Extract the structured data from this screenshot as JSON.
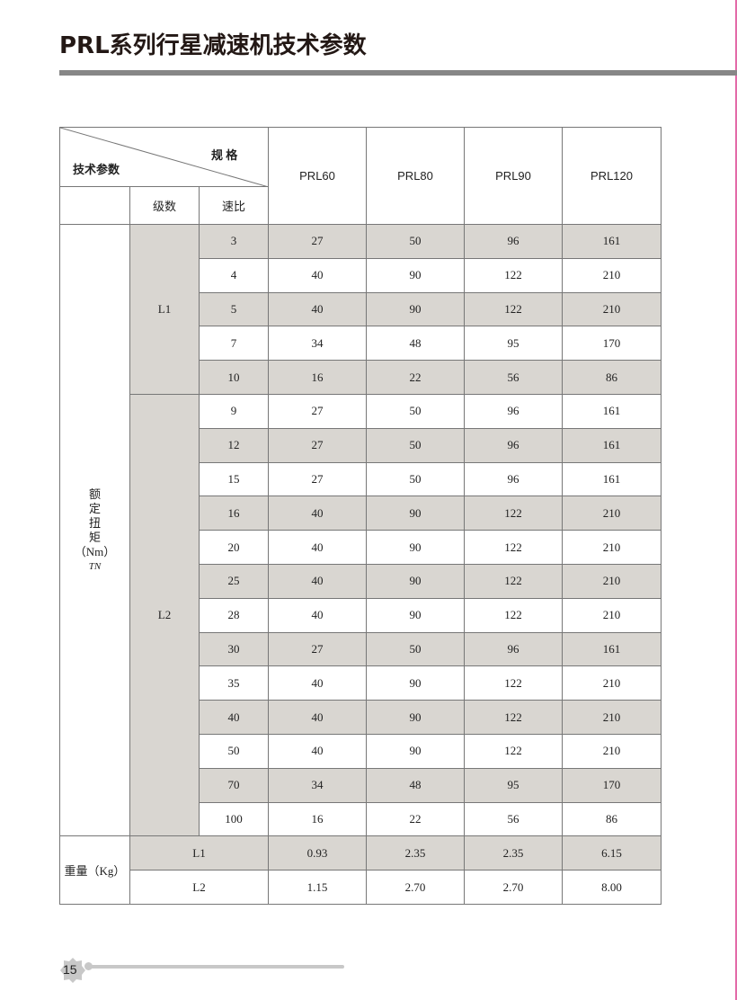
{
  "title": "PRL系列行星减速机技术参数",
  "table": {
    "corner_left": "技术参数",
    "corner_right": "规 格",
    "stage_header": "级数",
    "ratio_header": "速比",
    "models": [
      "PRL60",
      "PRL80",
      "PRL90",
      "PRL120"
    ],
    "torque_label": [
      "额",
      "定",
      "扭",
      "矩",
      "（Nm）"
    ],
    "torque_symbol": "TN",
    "groups": [
      {
        "stage": "L1",
        "rows": [
          {
            "ratio": "3",
            "values": [
              "27",
              "50",
              "96",
              "161"
            ]
          },
          {
            "ratio": "4",
            "values": [
              "40",
              "90",
              "122",
              "210"
            ]
          },
          {
            "ratio": "5",
            "values": [
              "40",
              "90",
              "122",
              "210"
            ]
          },
          {
            "ratio": "7",
            "values": [
              "34",
              "48",
              "95",
              "170"
            ]
          },
          {
            "ratio": "10",
            "values": [
              "16",
              "22",
              "56",
              "86"
            ]
          }
        ]
      },
      {
        "stage": "L2",
        "rows": [
          {
            "ratio": "9",
            "values": [
              "27",
              "50",
              "96",
              "161"
            ]
          },
          {
            "ratio": "12",
            "values": [
              "27",
              "50",
              "96",
              "161"
            ]
          },
          {
            "ratio": "15",
            "values": [
              "27",
              "50",
              "96",
              "161"
            ]
          },
          {
            "ratio": "16",
            "values": [
              "40",
              "90",
              "122",
              "210"
            ]
          },
          {
            "ratio": "20",
            "values": [
              "40",
              "90",
              "122",
              "210"
            ]
          },
          {
            "ratio": "25",
            "values": [
              "40",
              "90",
              "122",
              "210"
            ]
          },
          {
            "ratio": "28",
            "values": [
              "40",
              "90",
              "122",
              "210"
            ]
          },
          {
            "ratio": "30",
            "values": [
              "27",
              "50",
              "96",
              "161"
            ]
          },
          {
            "ratio": "35",
            "values": [
              "40",
              "90",
              "122",
              "210"
            ]
          },
          {
            "ratio": "40",
            "values": [
              "40",
              "90",
              "122",
              "210"
            ]
          },
          {
            "ratio": "50",
            "values": [
              "40",
              "90",
              "122",
              "210"
            ]
          },
          {
            "ratio": "70",
            "values": [
              "34",
              "48",
              "95",
              "170"
            ]
          },
          {
            "ratio": "100",
            "values": [
              "16",
              "22",
              "56",
              "86"
            ]
          }
        ]
      }
    ],
    "weight_label": "重量（Kg）",
    "weights": [
      {
        "stage": "L1",
        "values": [
          "0.93",
          "2.35",
          "2.35",
          "6.15"
        ]
      },
      {
        "stage": "L2",
        "values": [
          "1.15",
          "2.70",
          "2.70",
          "8.00"
        ]
      }
    ]
  },
  "page_number": "15",
  "colors": {
    "shade": "#d9d6d1",
    "bar": "#878787",
    "accent_border": "#e36aa8"
  }
}
